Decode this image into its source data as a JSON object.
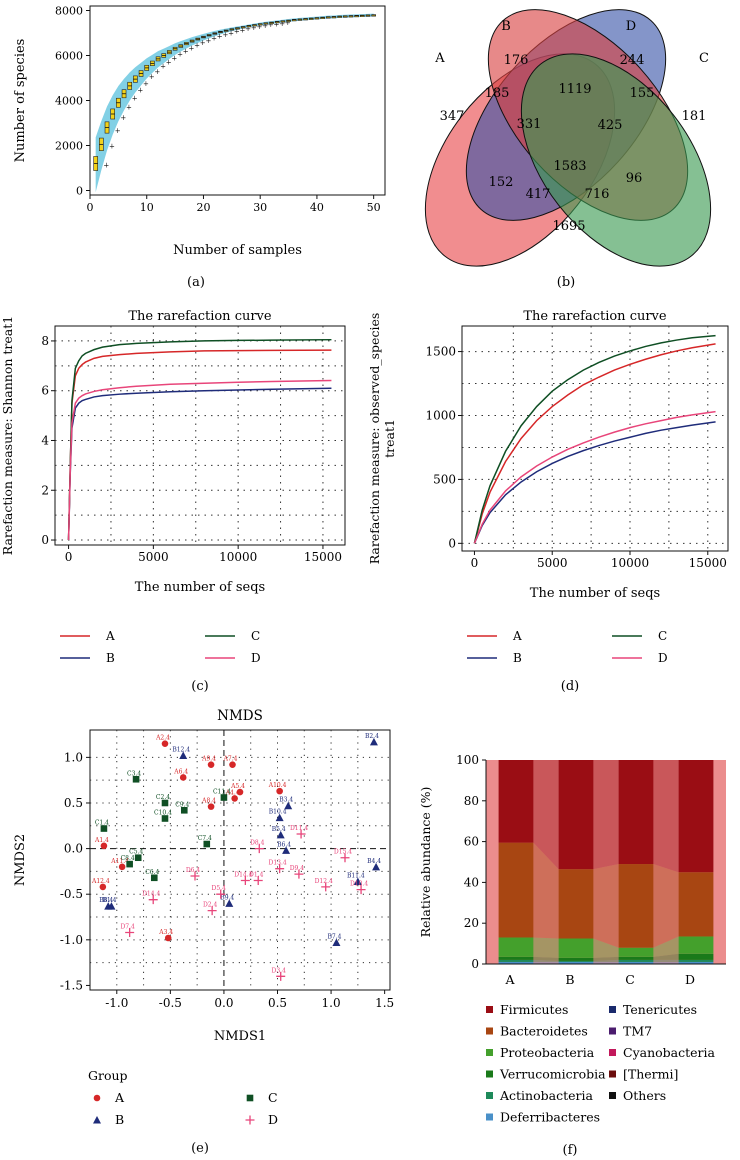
{
  "panel_labels": {
    "a": "(a)",
    "b": "(b)",
    "c": "(c)",
    "d": "(d)",
    "e": "(e)",
    "f": "(f)"
  },
  "colors": {
    "A": "#d62728",
    "B": "#1f2c7a",
    "C": "#0f4f24",
    "D": "#e8457a",
    "venn_A": "#e8474a",
    "venn_B": "#3954a8",
    "venn_C": "#3a9a50",
    "venn_D": "#d94040"
  },
  "chart_data": [
    {
      "id": "a",
      "type": "box",
      "xlabel": "Number of samples",
      "ylabel": "Number of species",
      "xlim": [
        0,
        52
      ],
      "ylim": [
        -200,
        8200
      ],
      "xticks": [
        0,
        10,
        20,
        30,
        40,
        50
      ],
      "yticks": [
        0,
        2000,
        4000,
        6000,
        8000
      ],
      "x": [
        1,
        2,
        3,
        4,
        5,
        6,
        7,
        8,
        9,
        10,
        11,
        12,
        13,
        14,
        15,
        16,
        17,
        18,
        19,
        20,
        21,
        22,
        23,
        24,
        25,
        26,
        27,
        28,
        29,
        30,
        31,
        32,
        33,
        34,
        35,
        36,
        37,
        38,
        39,
        40,
        41,
        42,
        43,
        44,
        45,
        46,
        47,
        48,
        49,
        50
      ],
      "median": [
        1200,
        2050,
        2800,
        3400,
        3900,
        4300,
        4650,
        4950,
        5200,
        5450,
        5650,
        5850,
        6000,
        6150,
        6300,
        6420,
        6530,
        6640,
        6730,
        6820,
        6900,
        6980,
        7050,
        7110,
        7170,
        7220,
        7270,
        7320,
        7360,
        7400,
        7440,
        7470,
        7500,
        7530,
        7560,
        7590,
        7610,
        7630,
        7650,
        7670,
        7690,
        7710,
        7720,
        7740,
        7750,
        7760,
        7770,
        7780,
        7790,
        7800
      ]
    },
    {
      "id": "b",
      "type": "venn",
      "sets": [
        "A",
        "B",
        "C",
        "D"
      ],
      "regions": [
        {
          "sets": "A",
          "value": 347
        },
        {
          "sets": "B",
          "value": 176
        },
        {
          "sets": "D",
          "value": 244
        },
        {
          "sets": "C",
          "value": 181
        },
        {
          "sets": "A&B",
          "value": 185
        },
        {
          "sets": "B&D",
          "value": 1119
        },
        {
          "sets": "C&D",
          "value": 155
        },
        {
          "sets": "A&B&D",
          "value": 331
        },
        {
          "sets": "B&C&D",
          "value": 425
        },
        {
          "sets": "A&D",
          "value": 152
        },
        {
          "sets": "A&B&C&D",
          "value": 1583
        },
        {
          "sets": "B&C",
          "value": 96
        },
        {
          "sets": "A&B&C",
          "value": 417
        },
        {
          "sets": "A&C&D",
          "value": 716
        },
        {
          "sets": "A&C",
          "value": 1695
        }
      ]
    },
    {
      "id": "c",
      "type": "line",
      "title": "The rarefaction curve",
      "xlabel": "The number of seqs",
      "ylabel": "Rarefaction measure: Shannon treat1",
      "xlim": [
        -800,
        16300
      ],
      "ylim": [
        -0.2,
        8.6
      ],
      "xticks": [
        0,
        5000,
        10000,
        15000
      ],
      "yticks": [
        0,
        2,
        4,
        6,
        8
      ],
      "x": [
        0,
        100,
        200,
        400,
        600,
        800,
        1000,
        1500,
        2000,
        3000,
        4000,
        5000,
        6000,
        8000,
        10000,
        12000,
        15500
      ],
      "series": [
        {
          "name": "A",
          "values": [
            0,
            3.0,
            5.5,
            6.6,
            6.9,
            7.05,
            7.15,
            7.3,
            7.38,
            7.45,
            7.5,
            7.53,
            7.56,
            7.6,
            7.61,
            7.62,
            7.63
          ]
        },
        {
          "name": "B",
          "values": [
            0,
            2.7,
            4.5,
            5.3,
            5.5,
            5.6,
            5.65,
            5.75,
            5.8,
            5.86,
            5.9,
            5.93,
            5.96,
            6.0,
            6.03,
            6.06,
            6.1
          ]
        },
        {
          "name": "C",
          "values": [
            0,
            3.0,
            5.6,
            6.9,
            7.2,
            7.4,
            7.5,
            7.65,
            7.75,
            7.85,
            7.9,
            7.93,
            7.96,
            8.0,
            8.02,
            8.03,
            8.05
          ]
        },
        {
          "name": "D",
          "values": [
            0,
            2.8,
            4.7,
            5.5,
            5.7,
            5.8,
            5.87,
            5.97,
            6.04,
            6.12,
            6.18,
            6.22,
            6.26,
            6.3,
            6.34,
            6.37,
            6.41
          ]
        }
      ],
      "legend": [
        "A",
        "B",
        "C",
        "D"
      ]
    },
    {
      "id": "d",
      "type": "line",
      "title": "The rarefaction curve",
      "xlabel": "The number of seqs",
      "ylabel_line1": "Rarefaction measure: observed_species",
      "ylabel_line2": "treat1",
      "xlim": [
        -800,
        16300
      ],
      "ylim": [
        -60,
        1700
      ],
      "xticks": [
        0,
        5000,
        10000,
        15000
      ],
      "yticks": [
        0,
        500,
        1000,
        1500
      ],
      "x": [
        0,
        500,
        1000,
        2000,
        3000,
        4000,
        5000,
        6000,
        7000,
        8000,
        9000,
        10000,
        11000,
        12000,
        13000,
        14000,
        15500
      ],
      "series": [
        {
          "name": "A",
          "values": [
            0,
            230,
            400,
            640,
            820,
            960,
            1070,
            1160,
            1240,
            1300,
            1355,
            1400,
            1440,
            1475,
            1505,
            1530,
            1560
          ]
        },
        {
          "name": "B",
          "values": [
            0,
            140,
            240,
            380,
            480,
            560,
            625,
            680,
            725,
            765,
            800,
            830,
            860,
            885,
            905,
            925,
            950
          ]
        },
        {
          "name": "C",
          "values": [
            0,
            260,
            450,
            720,
            920,
            1070,
            1190,
            1280,
            1355,
            1415,
            1465,
            1505,
            1540,
            1568,
            1590,
            1608,
            1625
          ]
        },
        {
          "name": "D",
          "values": [
            0,
            150,
            260,
            410,
            520,
            605,
            675,
            735,
            785,
            830,
            870,
            905,
            935,
            960,
            985,
            1005,
            1030
          ]
        }
      ],
      "legend": [
        "A",
        "B",
        "C",
        "D"
      ]
    },
    {
      "id": "e",
      "type": "scatter",
      "title": "NMDS",
      "xlabel": "NMDS1",
      "ylabel": "NMDS2",
      "xlim": [
        -1.25,
        1.55
      ],
      "ylim": [
        -1.55,
        1.3
      ],
      "xticks": [
        -1.0,
        -0.5,
        0.0,
        0.5,
        1.0,
        1.5
      ],
      "yticks": [
        -1.5,
        -1.0,
        -0.5,
        0.0,
        0.5,
        1.0
      ],
      "legend_title": "Group",
      "groups": [
        "A",
        "B",
        "C",
        "D"
      ],
      "points": [
        {
          "g": "A",
          "label": "A2.4",
          "x": -0.55,
          "y": 1.15
        },
        {
          "g": "A",
          "label": "A9.4",
          "x": -0.12,
          "y": 0.92
        },
        {
          "g": "A",
          "label": "A7.4",
          "x": 0.08,
          "y": 0.92
        },
        {
          "g": "A",
          "label": "A6.4",
          "x": -0.38,
          "y": 0.78
        },
        {
          "g": "A",
          "label": "A5.4",
          "x": 0.15,
          "y": 0.62
        },
        {
          "g": "A",
          "label": "A10.4",
          "x": 0.52,
          "y": 0.63
        },
        {
          "g": "A",
          "label": "A8.4",
          "x": -0.12,
          "y": 0.46
        },
        {
          "g": "A",
          "label": "A4.4",
          "x": 0.1,
          "y": 0.55
        },
        {
          "g": "A",
          "label": "A1.4",
          "x": -1.12,
          "y": 0.03
        },
        {
          "g": "A",
          "label": "A11.4",
          "x": -0.95,
          "y": -0.2
        },
        {
          "g": "A",
          "label": "A12.4",
          "x": -1.13,
          "y": -0.42
        },
        {
          "g": "A",
          "label": "A3.4",
          "x": -0.52,
          "y": -0.98
        },
        {
          "g": "B",
          "label": "B12.4",
          "x": -0.38,
          "y": 1.02
        },
        {
          "g": "B",
          "label": "B2.4",
          "x": 1.4,
          "y": 1.17
        },
        {
          "g": "B",
          "label": "B3.4",
          "x": 0.6,
          "y": 0.47
        },
        {
          "g": "B",
          "label": "B10.4",
          "x": 0.52,
          "y": 0.34
        },
        {
          "g": "B",
          "label": "B5.4",
          "x": 0.53,
          "y": 0.15
        },
        {
          "g": "B",
          "label": "B6.4",
          "x": 0.58,
          "y": -0.02
        },
        {
          "g": "B",
          "label": "B4.4",
          "x": 1.42,
          "y": -0.2
        },
        {
          "g": "B",
          "label": "B11.4",
          "x": 1.25,
          "y": -0.36
        },
        {
          "g": "B",
          "label": "B8.4",
          "x": -1.08,
          "y": -0.63
        },
        {
          "g": "B",
          "label": "B1.4",
          "x": -1.05,
          "y": -0.63
        },
        {
          "g": "B",
          "label": "B9.4",
          "x": 0.05,
          "y": -0.6
        },
        {
          "g": "B",
          "label": "B7.4",
          "x": 1.05,
          "y": -1.03
        },
        {
          "g": "C",
          "label": "C3.4",
          "x": -0.82,
          "y": 0.76
        },
        {
          "g": "C",
          "label": "C2.4",
          "x": -0.55,
          "y": 0.5
        },
        {
          "g": "C",
          "label": "C9.4",
          "x": -0.37,
          "y": 0.42
        },
        {
          "g": "C",
          "label": "C10.4",
          "x": -0.55,
          "y": 0.33
        },
        {
          "g": "C",
          "label": "C11.4",
          "x": 0.0,
          "y": 0.56
        },
        {
          "g": "C",
          "label": "C1.4",
          "x": -1.12,
          "y": 0.22
        },
        {
          "g": "C",
          "label": "C7.4",
          "x": -0.16,
          "y": 0.05
        },
        {
          "g": "C",
          "label": "C5.4",
          "x": -0.8,
          "y": -0.1
        },
        {
          "g": "C",
          "label": "C8.4",
          "x": -0.88,
          "y": -0.17
        },
        {
          "g": "C",
          "label": "C6.4",
          "x": -0.65,
          "y": -0.32
        },
        {
          "g": "D",
          "label": "D11.4",
          "x": 0.72,
          "y": 0.16
        },
        {
          "g": "D",
          "label": "D8.4",
          "x": 0.33,
          "y": -0.0
        },
        {
          "g": "D",
          "label": "D15.4",
          "x": 1.13,
          "y": -0.1
        },
        {
          "g": "D",
          "label": "D13.4",
          "x": 0.52,
          "y": -0.22
        },
        {
          "g": "D",
          "label": "D9.4",
          "x": 0.7,
          "y": -0.28
        },
        {
          "g": "D",
          "label": "D6.4",
          "x": -0.27,
          "y": -0.3
        },
        {
          "g": "D",
          "label": "D14.4",
          "x": 0.2,
          "y": -0.35
        },
        {
          "g": "D",
          "label": "D1.4",
          "x": 0.32,
          "y": -0.35
        },
        {
          "g": "D",
          "label": "D12.4",
          "x": 0.95,
          "y": -0.42
        },
        {
          "g": "D",
          "label": "D10.4",
          "x": 1.28,
          "y": -0.45
        },
        {
          "g": "D",
          "label": "D5.4",
          "x": -0.03,
          "y": -0.5
        },
        {
          "g": "D",
          "label": "D14.4",
          "x": -0.66,
          "y": -0.56
        },
        {
          "g": "D",
          "label": "D2.4",
          "x": -0.11,
          "y": -0.68
        },
        {
          "g": "D",
          "label": "D7.4",
          "x": -0.88,
          "y": -0.92
        },
        {
          "g": "D",
          "label": "D3.4",
          "x": 0.53,
          "y": -1.4
        }
      ]
    },
    {
      "id": "f",
      "type": "stacked-bar",
      "ylabel": "Relative abundance (%)",
      "ylim": [
        0,
        100
      ],
      "yticks": [
        0,
        20,
        40,
        60,
        80,
        100
      ],
      "categories": [
        "A",
        "B",
        "C",
        "D"
      ],
      "series": [
        {
          "name": "Deferribacteres",
          "color": "#4a90c8",
          "values": [
            1,
            1,
            1,
            1
          ]
        },
        {
          "name": "Actinobacteria",
          "color": "#1e8a5a",
          "values": [
            1,
            0.5,
            1,
            1
          ]
        },
        {
          "name": "Verrucomicrobia",
          "color": "#1a7a1a",
          "values": [
            1.5,
            1.5,
            1.5,
            3
          ]
        },
        {
          "name": "Proteobacteria",
          "color": "#44a02c",
          "values": [
            9.5,
            9.5,
            4.5,
            8.5
          ]
        },
        {
          "name": "Bacteroidetes",
          "color": "#a84612",
          "values": [
            46.5,
            34,
            41,
            31.5
          ]
        },
        {
          "name": "Firmicutes",
          "color": "#9a0d14",
          "values": [
            40.5,
            53.5,
            51,
            55
          ]
        }
      ],
      "legend": [
        {
          "name": "Firmicutes",
          "color": "#9a0d14"
        },
        {
          "name": "Tenericutes",
          "color": "#1a2a6c"
        },
        {
          "name": "Bacteroidetes",
          "color": "#a84612"
        },
        {
          "name": "TM7",
          "color": "#4b1c6e"
        },
        {
          "name": "Proteobacteria",
          "color": "#44a02c"
        },
        {
          "name": "Cyanobacteria",
          "color": "#c2185b"
        },
        {
          "name": "Verrucomicrobia",
          "color": "#1a7a1a"
        },
        {
          "name": "[Thermi]",
          "color": "#6b0d0d"
        },
        {
          "name": "Actinobacteria",
          "color": "#1e8a5a"
        },
        {
          "name": "Others",
          "color": "#111111"
        },
        {
          "name": "Deferribacteres",
          "color": "#4a90c8"
        }
      ]
    }
  ]
}
